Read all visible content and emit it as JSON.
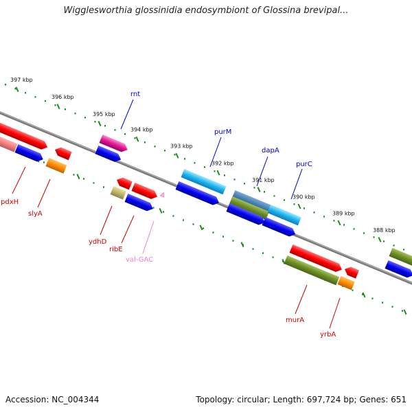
{
  "header": {
    "title": "Wigglesworthia glossinidia endosymbiont of Glossina brevipal..."
  },
  "footer": {
    "accession": "Accession: NC_004344",
    "topology": "Topology: circular; Length: 697,724 bp; Genes: 651"
  },
  "ruler_ticks": [
    "397 kbp",
    "396 kbp",
    "395 kbp",
    "394 kbp",
    "393 kbp",
    "392 kbp",
    "391 kbp",
    "390 kbp",
    "389 kbp",
    "388 kbp"
  ],
  "colors": {
    "backbone": "#808080",
    "tick_green": "#1a8c1a",
    "label_blue": "#0000cc",
    "label_red": "#cc0000",
    "label_pink": "#ee82c8"
  },
  "genes": {
    "forward_labels": [
      {
        "name": "rnt",
        "color": "#0000cc"
      },
      {
        "name": "purM",
        "color": "#0000cc"
      },
      {
        "name": "dapA",
        "color": "#0000cc"
      },
      {
        "name": "purC",
        "color": "#0000cc"
      }
    ],
    "reverse_labels": [
      {
        "name": "pdxH",
        "color": "#cc0000"
      },
      {
        "name": "slyA",
        "color": "#cc0000"
      },
      {
        "name": "ydhD",
        "color": "#cc0000"
      },
      {
        "name": "ribE",
        "color": "#cc0000"
      },
      {
        "name": "val-GAC",
        "color": "#ee82c8"
      },
      {
        "name": "murA",
        "color": "#cc0000"
      },
      {
        "name": "yrbA",
        "color": "#cc0000"
      }
    ]
  }
}
